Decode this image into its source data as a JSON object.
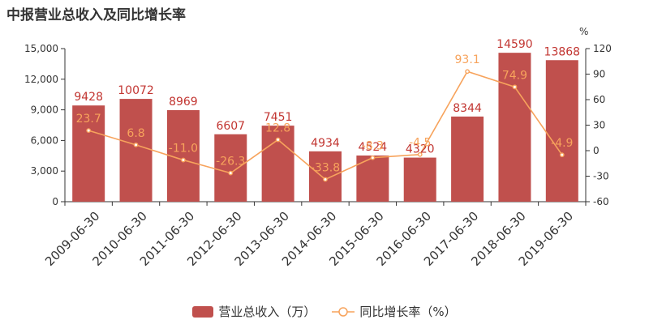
{
  "title": "中报营业总收入及同比增长率",
  "colors": {
    "bar": "#c0504d",
    "bar_label": "#c23531",
    "line": "#f7a35c",
    "axis": "#333333"
  },
  "legend": {
    "bar_label": "营业总收入（万）",
    "line_label": "同比增长率（%）"
  },
  "chart_data": {
    "type": "bar",
    "title": "中报营业总收入及同比增长率",
    "categories": [
      "2009-06-30",
      "2010-06-30",
      "2011-06-30",
      "2012-06-30",
      "2013-06-30",
      "2014-06-30",
      "2015-06-30",
      "2016-06-30",
      "2017-06-30",
      "2018-06-30",
      "2019-06-30"
    ],
    "series": [
      {
        "name": "营业总收入（万）",
        "type": "bar",
        "axis": "left",
        "values": [
          9428,
          10072,
          8969,
          6607,
          7451,
          4934,
          4524,
          4320,
          8344,
          14590,
          13868
        ]
      },
      {
        "name": "同比增长率（%）",
        "type": "line",
        "axis": "right",
        "values": [
          23.7,
          6.8,
          -11.0,
          -26.3,
          12.8,
          -33.8,
          -8.3,
          -4.5,
          93.1,
          74.9,
          -4.9
        ],
        "labels": [
          "23.7",
          "6.8",
          "-11.0",
          "-26.3",
          "12.8",
          "-33.8",
          "-8.3",
          "-4.5",
          "93.1",
          "74.9",
          "-4.9"
        ]
      }
    ],
    "y_left": {
      "min": 0,
      "max": 15000,
      "ticks": [
        "0",
        "3,000",
        "6,000",
        "9,000",
        "12,000",
        "15,000"
      ]
    },
    "y_right": {
      "min": -60,
      "max": 120,
      "unit": "%",
      "ticks": [
        "-60",
        "-30",
        "0",
        "30",
        "60",
        "90",
        "120"
      ]
    },
    "grid": false,
    "legend_position": "bottom"
  }
}
